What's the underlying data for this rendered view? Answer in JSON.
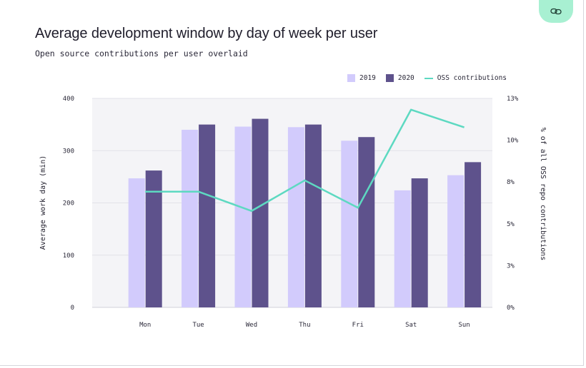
{
  "page": {
    "title": "Average development window by day of week per user",
    "subtitle": "Open source contributions per user overlaid"
  },
  "icons": {
    "link_button": "link-icon"
  },
  "colors": {
    "y2019": "#d2cbfc",
    "y2020": "#5e528c",
    "oss": "#5dd9c1"
  },
  "legend": {
    "s2019": "2019",
    "s2020": "2020",
    "oss": "OSS contributions"
  },
  "chart_data": {
    "type": "bar",
    "title": "Average development window by day of week per user",
    "subtitle": "Open source contributions per user overlaid",
    "categories": [
      "Mon",
      "Tue",
      "Wed",
      "Thu",
      "Fri",
      "Sat",
      "Sun"
    ],
    "series": [
      {
        "name": "2019",
        "type": "bar",
        "values": [
          247,
          340,
          346,
          345,
          319,
          224,
          253
        ]
      },
      {
        "name": "2020",
        "type": "bar",
        "values": [
          262,
          350,
          361,
          350,
          326,
          247,
          278
        ]
      },
      {
        "name": "OSS contributions",
        "type": "line",
        "axis": "right",
        "values": [
          7.2,
          7.2,
          6.0,
          7.9,
          6.2,
          12.3,
          11.2
        ]
      }
    ],
    "ylabel": "Average work day (min)",
    "ylim": [
      0,
      400
    ],
    "yticks": [
      "0",
      "100",
      "200",
      "300",
      "400"
    ],
    "y2label": "% of all OSS repo contributions",
    "y2lim": [
      0,
      13
    ],
    "y2ticks": [
      "0%",
      "3%",
      "5%",
      "8%",
      "10%",
      "13%"
    ],
    "grid": true,
    "legend_position": "top-right"
  }
}
